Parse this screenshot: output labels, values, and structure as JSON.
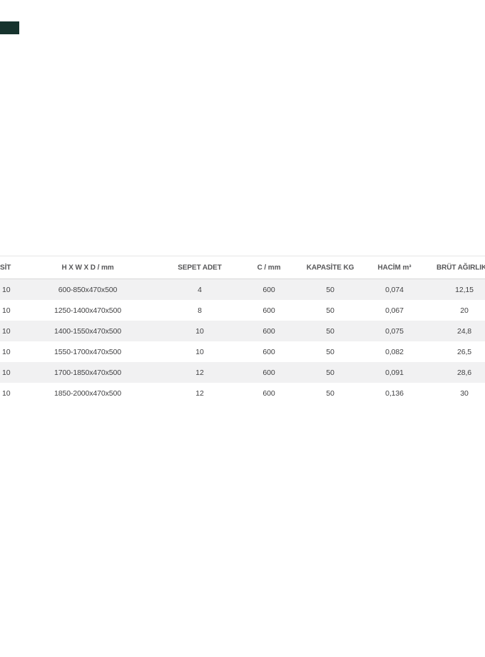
{
  "page": {
    "background_color": "#ffffff"
  },
  "corner_mark": {
    "color": "#16332d"
  },
  "table": {
    "columns": {
      "variant": "SİT",
      "dimensions": "H X W X D / mm",
      "basket_count": "SEPET ADET",
      "c_mm": "C / mm",
      "capacity_kg": "KAPASİTE KG",
      "volume_m3": "HACİM m³",
      "gross_weight_kg": "BRÜT AĞIRLIK KG"
    },
    "stripe_color": "#f1f1f2",
    "rows": [
      [
        "10",
        "600-850x470x500",
        "4",
        "600",
        "50",
        "0,074",
        "12,15"
      ],
      [
        "10",
        "1250-1400x470x500",
        "8",
        "600",
        "50",
        "0,067",
        "20"
      ],
      [
        "10",
        "1400-1550x470x500",
        "10",
        "600",
        "50",
        "0,075",
        "24,8"
      ],
      [
        "10",
        "1550-1700x470x500",
        "10",
        "600",
        "50",
        "0,082",
        "26,5"
      ],
      [
        "10",
        "1700-1850x470x500",
        "12",
        "600",
        "50",
        "0,091",
        "28,6"
      ],
      [
        "10",
        "1850-2000x470x500",
        "12",
        "600",
        "50",
        "0,136",
        "30"
      ]
    ]
  }
}
